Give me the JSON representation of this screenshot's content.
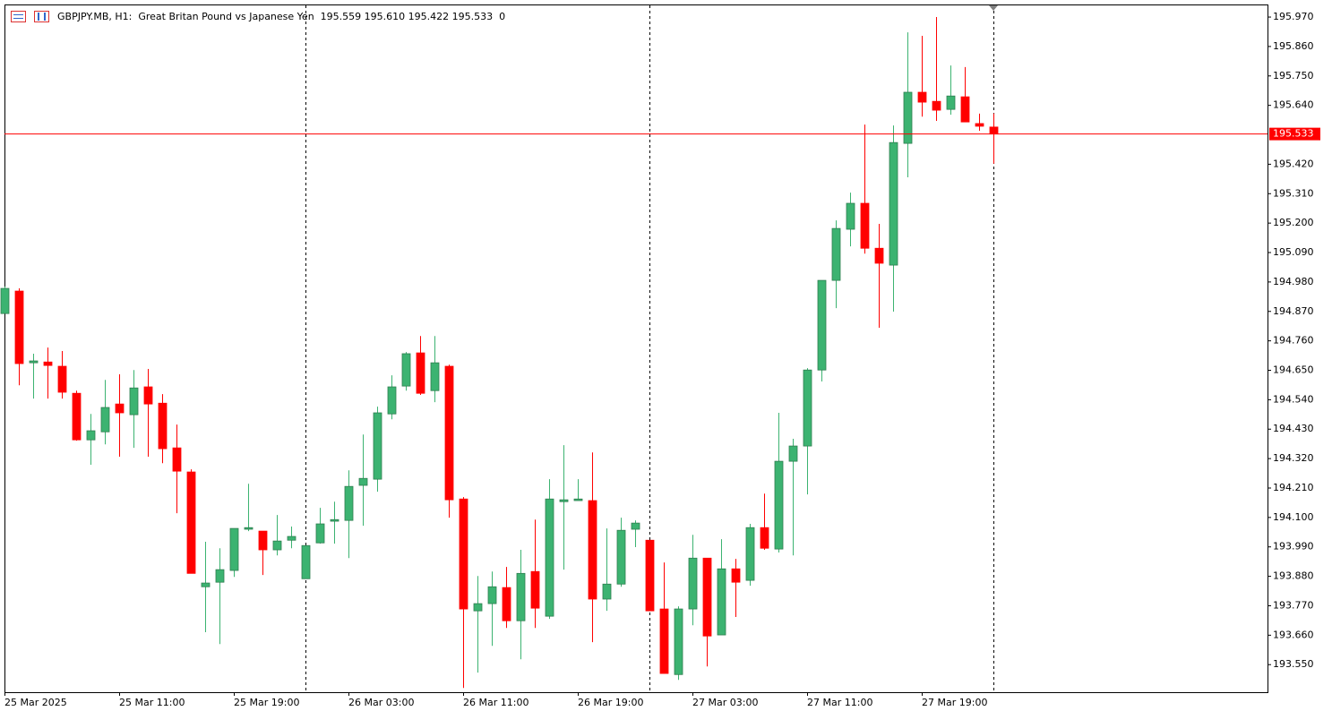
{
  "chart_data": {
    "type": "candlestick",
    "title": "GBPJPY.MB, H1:  Great Britan Pound vs Japanese Yen  195.559 195.610 195.422 195.533  0",
    "categories": [
      "25 Mar 2025",
      null,
      null,
      null,
      null,
      null,
      null,
      null,
      "25 Mar 11:00",
      null,
      null,
      null,
      null,
      null,
      null,
      null,
      "25 Mar 19:00",
      null,
      null,
      null,
      null,
      null,
      null,
      null,
      "26 Mar 03:00",
      null,
      null,
      null,
      null,
      null,
      null,
      null,
      "26 Mar 11:00",
      null,
      null,
      null,
      null,
      null,
      null,
      null,
      "26 Mar 19:00",
      null,
      null,
      null,
      null,
      null,
      null,
      null,
      "27 Mar 03:00",
      null,
      null,
      null,
      null,
      null,
      null,
      null,
      "27 Mar 11:00",
      null,
      null,
      null,
      null,
      null,
      null,
      null,
      "27 Mar 19:00",
      null,
      null,
      null,
      null,
      null
    ],
    "open": [
      194.862,
      194.946,
      194.678,
      194.681,
      194.665,
      194.564,
      194.39,
      194.42,
      194.524,
      194.484,
      194.588,
      194.527,
      194.36,
      194.27,
      193.841,
      193.858,
      193.902,
      194.056,
      194.049,
      193.979,
      194.015,
      193.871,
      194.005,
      194.086,
      194.089,
      194.22,
      194.243,
      194.487,
      194.591,
      194.715,
      194.574,
      194.665,
      194.169,
      193.751,
      193.778,
      193.838,
      193.714,
      193.898,
      193.731,
      194.159,
      194.163,
      194.163,
      193.795,
      193.851,
      194.056,
      194.015,
      193.758,
      193.513,
      193.758,
      193.948,
      193.661,
      193.908,
      193.865,
      194.062,
      193.982,
      194.31,
      194.367,
      194.651,
      194.986,
      195.177,
      195.274,
      195.106,
      195.043,
      195.498,
      195.689,
      195.655,
      195.625,
      195.672,
      195.572,
      195.559
    ],
    "high": [
      194.963,
      194.956,
      194.712,
      194.735,
      194.722,
      194.574,
      194.487,
      194.614,
      194.635,
      194.651,
      194.655,
      194.561,
      194.447,
      194.28,
      194.009,
      193.985,
      194.059,
      194.226,
      194.049,
      194.109,
      194.066,
      193.995,
      194.136,
      194.159,
      194.276,
      194.41,
      194.514,
      194.631,
      194.718,
      194.778,
      194.778,
      194.671,
      194.176,
      193.881,
      193.898,
      193.915,
      193.979,
      194.092,
      194.243,
      194.37,
      194.243,
      194.343,
      194.059,
      194.099,
      194.089,
      194.015,
      193.932,
      193.768,
      194.035,
      193.948,
      194.019,
      193.945,
      194.076,
      194.189,
      194.491,
      194.394,
      194.658,
      194.986,
      195.21,
      195.314,
      195.568,
      195.197,
      195.565,
      195.913,
      195.9,
      195.97,
      195.789,
      195.783,
      195.609,
      195.61
    ],
    "low": [
      194.862,
      194.594,
      194.544,
      194.544,
      194.544,
      194.387,
      194.297,
      194.373,
      194.327,
      194.36,
      194.327,
      194.303,
      194.116,
      193.891,
      193.671,
      193.627,
      193.878,
      194.049,
      193.885,
      193.958,
      193.985,
      193.871,
      194.002,
      194.002,
      193.948,
      194.069,
      194.196,
      194.467,
      194.574,
      194.558,
      194.531,
      194.099,
      193.463,
      193.52,
      193.62,
      193.687,
      193.57,
      193.687,
      193.721,
      193.905,
      194.163,
      193.634,
      193.751,
      193.841,
      193.989,
      193.751,
      193.517,
      193.493,
      193.697,
      193.543,
      193.661,
      193.728,
      193.845,
      193.979,
      193.969,
      193.958,
      194.186,
      194.608,
      194.882,
      195.113,
      195.086,
      194.809,
      194.869,
      195.371,
      195.598,
      195.582,
      195.605,
      195.578,
      195.545,
      195.422
    ],
    "close": [
      194.956,
      194.675,
      194.685,
      194.668,
      194.568,
      194.39,
      194.424,
      194.511,
      194.491,
      194.584,
      194.524,
      194.357,
      194.273,
      193.891,
      193.855,
      193.905,
      194.059,
      194.062,
      193.979,
      194.012,
      194.029,
      193.995,
      194.076,
      194.092,
      194.216,
      194.246,
      194.491,
      194.588,
      194.712,
      194.564,
      194.678,
      194.166,
      193.758,
      193.778,
      193.841,
      193.714,
      193.891,
      193.761,
      194.169,
      194.166,
      194.169,
      193.795,
      193.851,
      194.052,
      194.079,
      193.751,
      193.517,
      193.758,
      193.948,
      193.657,
      193.908,
      193.858,
      194.062,
      193.985,
      194.31,
      194.367,
      194.651,
      194.986,
      195.18,
      195.274,
      195.106,
      195.05,
      195.501,
      195.689,
      195.652,
      195.622,
      195.675,
      195.578,
      195.562,
      195.533
    ],
    "up_color": "#3cb371",
    "down_color": "#ff0000",
    "current_price": {
      "value": 195.533,
      "label": "195.533"
    },
    "current_price_color": "#ff0000",
    "ylim": [
      193.447,
      196.017
    ],
    "yticks": [
      {
        "value": 195.97,
        "label": "195.970"
      },
      {
        "value": 195.86,
        "label": "195.860"
      },
      {
        "value": 195.75,
        "label": "195.750"
      },
      {
        "value": 195.64,
        "label": "195.640"
      },
      {
        "value": 195.42,
        "label": "195.420"
      },
      {
        "value": 195.31,
        "label": "195.310"
      },
      {
        "value": 195.2,
        "label": "195.200"
      },
      {
        "value": 195.09,
        "label": "195.090"
      },
      {
        "value": 194.98,
        "label": "194.980"
      },
      {
        "value": 194.87,
        "label": "194.870"
      },
      {
        "value": 194.76,
        "label": "194.760"
      },
      {
        "value": 194.65,
        "label": "194.650"
      },
      {
        "value": 194.54,
        "label": "194.540"
      },
      {
        "value": 194.43,
        "label": "194.430"
      },
      {
        "value": 194.32,
        "label": "194.320"
      },
      {
        "value": 194.21,
        "label": "194.210"
      },
      {
        "value": 194.1,
        "label": "194.100"
      },
      {
        "value": 193.99,
        "label": "193.990"
      },
      {
        "value": 193.88,
        "label": "193.880"
      },
      {
        "value": 193.77,
        "label": "193.770"
      },
      {
        "value": 193.66,
        "label": "193.660"
      },
      {
        "value": 193.55,
        "label": "193.550"
      }
    ],
    "grid": false
  }
}
